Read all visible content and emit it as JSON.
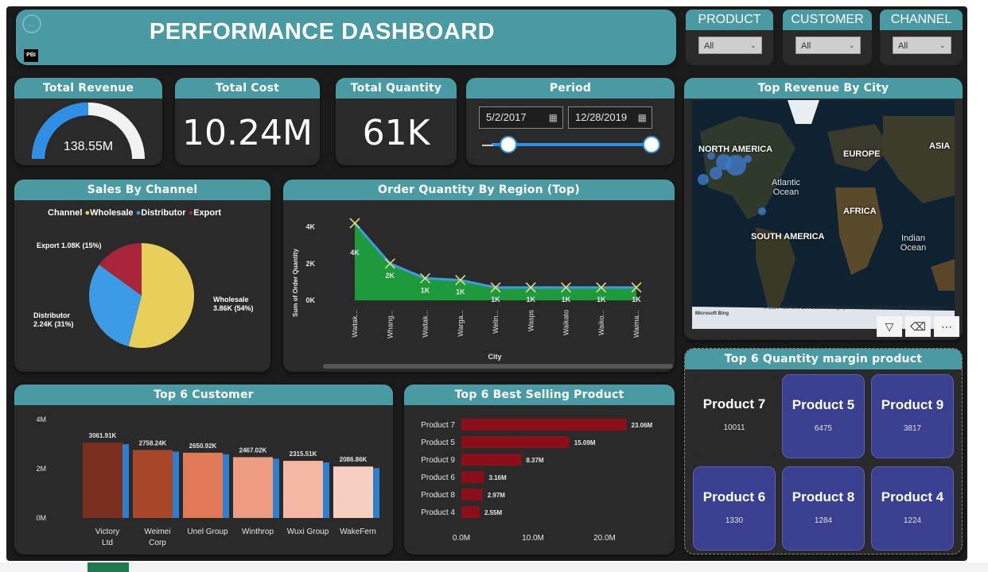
{
  "header": {
    "title": "PERFORMANCE DASHBOARD",
    "back_icon": "arrow-left-icon",
    "logo_text": "PBI"
  },
  "slicers": [
    {
      "label": "PRODUCT",
      "value": "All"
    },
    {
      "label": "CUSTOMER",
      "value": "All"
    },
    {
      "label": "CHANNEL",
      "value": "All"
    }
  ],
  "kpis": {
    "total_revenue": {
      "label": "Total Revenue",
      "value": "138.55M",
      "gauge_fraction": 0.5
    },
    "total_cost": {
      "label": "Total Cost",
      "value": "10.24M"
    },
    "total_quantity": {
      "label": "Total Quantity",
      "value": "61K"
    }
  },
  "period": {
    "label": "Period",
    "start": "5/2/2017",
    "end": "12/28/2019"
  },
  "sales_by_channel": {
    "title": "Sales By Channel",
    "legend_title": "Channel",
    "slices": [
      {
        "name": "Wholesale",
        "label": "Wholesale",
        "value_label": "3.86K (54%)",
        "percent": 54,
        "color": "#e8cf5a"
      },
      {
        "name": "Distributor",
        "label": "Distributor",
        "value_label": "2.24K (31%)",
        "percent": 31,
        "color": "#3d9be6"
      },
      {
        "name": "Export",
        "label": "Export",
        "value_label": "1.08K (15%)",
        "percent": 15,
        "color": "#a8243a"
      }
    ]
  },
  "order_quantity_by_region": {
    "title": "Order Quantity By Region (Top)",
    "ylabel": "Sum of Order Quantity",
    "xlabel": "City",
    "y_ticks": [
      "0K",
      "2K",
      "4K"
    ],
    "chart_data": {
      "type": "area",
      "categories": [
        "Waitak...",
        "Whang...",
        "Waitak...",
        "Warga...",
        "Welin...",
        "Wasps",
        "Waikato",
        "Waiko...",
        "Waima..."
      ],
      "values": [
        4.2,
        2.0,
        1.2,
        1.1,
        0.7,
        0.7,
        0.7,
        0.7,
        0.7
      ],
      "data_labels": [
        "4K",
        "2K",
        "1K",
        "1K",
        "1K",
        "1K",
        "1K",
        "1K",
        "1K"
      ],
      "ylim": [
        0,
        4.5
      ]
    }
  },
  "top_customer": {
    "title": "Top 6 Customer",
    "y_ticks": [
      "0M",
      "2M",
      "4M"
    ],
    "chart_data": {
      "type": "bar",
      "categories": [
        "Victory Ltd",
        "Weimei Corp",
        "Unel Group",
        "Winthrop",
        "Wuxi Group",
        "WakeFern"
      ],
      "values": [
        3.06,
        2.76,
        2.65,
        2.47,
        2.32,
        2.09
      ],
      "data_labels": [
        "3061.91K",
        "2758.24K",
        "2650.92K",
        "2467.02K",
        "2315.51K",
        "2086.86K"
      ],
      "colors": [
        "#7a2e1e",
        "#a8472a",
        "#e37a57",
        "#ec9d80",
        "#f2b8a4",
        "#f7cfc1"
      ],
      "ylim": [
        0,
        4
      ]
    }
  },
  "top_selling_product": {
    "title": "Top 6 Best Selling Product",
    "x_ticks": [
      "0.0M",
      "10.0M",
      "20.0M"
    ],
    "chart_data": {
      "type": "bar",
      "categories": [
        "Product 7",
        "Product 5",
        "Product 9",
        "Product 6",
        "Product 8",
        "Product 4"
      ],
      "values": [
        23.06,
        15.09,
        8.37,
        3.16,
        2.97,
        2.55
      ],
      "data_labels": [
        "23.06M",
        "15.09M",
        "8.37M",
        "3.16M",
        "2.97M",
        "2.55M"
      ],
      "xlim": [
        0,
        26
      ]
    }
  },
  "top_revenue_city": {
    "title": "Top Revenue By City",
    "labels": {
      "north_america": "NORTH AMERICA",
      "europe": "EUROPE",
      "asia": "ASIA",
      "atlantic": "Atlantic Ocean",
      "africa": "AFRICA",
      "south_america": "SOUTH AMERICA",
      "indian": "Indian Ocean"
    },
    "copyright": "© 2024 TomTom, Esri/Garmin Geographics SIO, © 2024 Microsoft Terms Corporation",
    "bing": "Microsoft Bing"
  },
  "quantity_margin": {
    "title": "Top 6 Quantity margin product",
    "tiles": [
      {
        "name": "Product 7",
        "value": "10011"
      },
      {
        "name": "Product 5",
        "value": "6475"
      },
      {
        "name": "Product 9",
        "value": "3817"
      },
      {
        "name": "Product 6",
        "value": "1330"
      },
      {
        "name": "Product 8",
        "value": "1284"
      },
      {
        "name": "Product 4",
        "value": "1224"
      }
    ]
  },
  "toolbar": {
    "filter_icon": "filter-icon",
    "eraser_icon": "eraser-icon",
    "more_icon": "more-options-icon"
  }
}
